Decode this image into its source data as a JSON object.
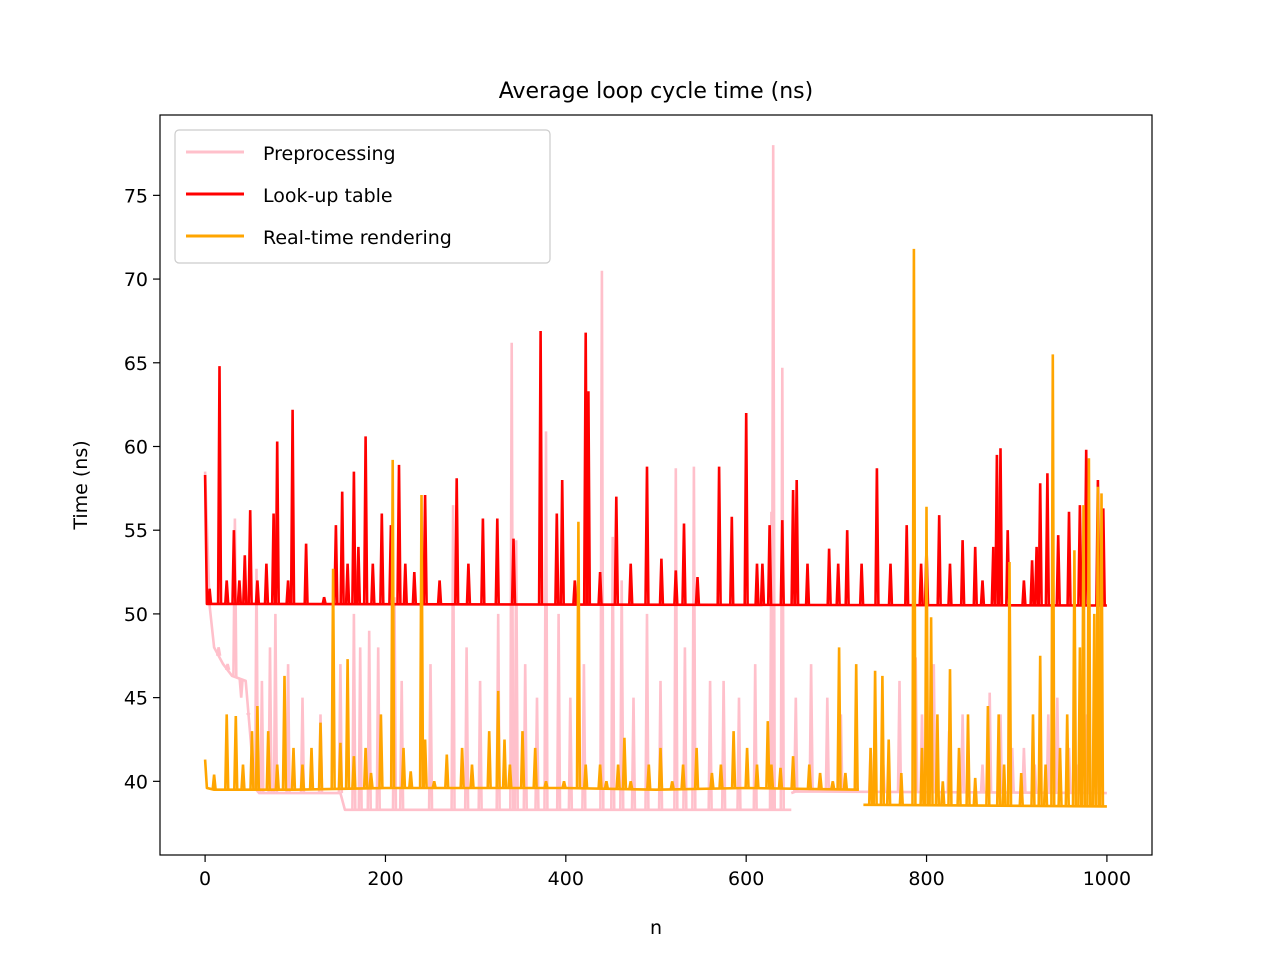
{
  "chart_data": {
    "type": "line",
    "title": "Average loop cycle time (ns)",
    "xlabel": "n",
    "ylabel": "Time (ns)",
    "xlim": [
      -50,
      1050
    ],
    "ylim": [
      35.6,
      79.8
    ],
    "xticks": [
      0,
      200,
      400,
      600,
      800,
      1000
    ],
    "yticks": [
      40,
      45,
      50,
      55,
      60,
      65,
      70,
      75
    ],
    "grid": false,
    "legend_position": "top-left",
    "legend": [
      "Preprocessing",
      "Look-up table",
      "Real-time rendering"
    ],
    "series": [
      {
        "name": "Preprocessing",
        "color": "#ffc0cb",
        "baseline_segments": [
          {
            "x": [
              0,
              5,
              10,
              20,
              30,
              45,
              55,
              60,
              100,
              150
            ],
            "y": [
              58.5,
              50.5,
              48.0,
              47.0,
              46.3,
              46.0,
              39.6,
              39.3,
              39.3,
              39.3
            ]
          },
          {
            "x": [
              150,
              155,
              650
            ],
            "y": [
              39.3,
              38.3,
              38.3
            ]
          },
          {
            "x": [
              650,
              655,
              1000
            ],
            "y": [
              39.3,
              39.4,
              39.3
            ]
          }
        ],
        "spikes": [
          [
            15,
            48
          ],
          [
            25,
            47
          ],
          [
            33,
            55.7
          ],
          [
            40,
            45
          ],
          [
            48,
            44
          ],
          [
            57,
            52.7
          ],
          [
            63,
            46
          ],
          [
            72,
            48
          ],
          [
            78,
            50
          ],
          [
            92,
            47
          ],
          [
            108,
            45
          ],
          [
            128,
            44
          ],
          [
            150,
            47
          ],
          [
            165,
            50
          ],
          [
            172,
            48
          ],
          [
            182,
            49
          ],
          [
            192,
            48
          ],
          [
            210,
            51
          ],
          [
            218,
            46
          ],
          [
            250,
            47
          ],
          [
            275,
            56.5
          ],
          [
            290,
            48
          ],
          [
            305,
            46
          ],
          [
            325,
            50
          ],
          [
            340,
            66.2
          ],
          [
            345,
            54.4
          ],
          [
            355,
            47
          ],
          [
            368,
            45
          ],
          [
            378,
            60.9
          ],
          [
            392,
            50
          ],
          [
            405,
            45
          ],
          [
            420,
            47
          ],
          [
            440,
            70.5
          ],
          [
            452,
            54.6
          ],
          [
            462,
            52
          ],
          [
            475,
            45
          ],
          [
            490,
            50
          ],
          [
            505,
            46
          ],
          [
            522,
            58.7
          ],
          [
            532,
            48
          ],
          [
            542,
            58.8
          ],
          [
            560,
            46
          ],
          [
            575,
            46
          ],
          [
            592,
            45
          ],
          [
            610,
            47
          ],
          [
            628,
            56.1
          ],
          [
            630,
            78
          ],
          [
            640,
            64.7
          ],
          [
            655,
            45
          ],
          [
            672,
            47
          ],
          [
            690,
            45
          ],
          [
            705,
            44
          ],
          [
            722,
            43
          ],
          [
            738,
            42
          ],
          [
            752,
            41
          ],
          [
            770,
            46
          ],
          [
            788,
            47.4
          ],
          [
            795,
            44
          ],
          [
            808,
            47
          ],
          [
            825,
            43
          ],
          [
            840,
            44
          ],
          [
            862,
            41
          ],
          [
            870,
            45.3
          ],
          [
            882,
            44
          ],
          [
            895,
            42
          ],
          [
            908,
            42
          ],
          [
            920,
            41
          ],
          [
            935,
            44
          ],
          [
            945,
            45
          ],
          [
            958,
            42
          ],
          [
            968,
            41
          ],
          [
            978,
            44
          ],
          [
            990,
            45
          ]
        ]
      },
      {
        "name": "Look-up table",
        "color": "#ff0000",
        "baseline_segments": [
          {
            "x": [
              0,
              2,
              1000
            ],
            "y": [
              58.3,
              50.6,
              50.5
            ]
          }
        ],
        "spikes": [
          [
            5,
            51.5
          ],
          [
            16,
            64.8
          ],
          [
            24,
            52
          ],
          [
            32,
            55
          ],
          [
            38,
            52
          ],
          [
            44,
            53.5
          ],
          [
            50,
            56.2
          ],
          [
            58,
            52
          ],
          [
            68,
            53
          ],
          [
            76,
            56
          ],
          [
            80,
            60.3
          ],
          [
            92,
            52
          ],
          [
            97,
            62.2
          ],
          [
            112,
            54.2
          ],
          [
            132,
            51
          ],
          [
            145,
            55.3
          ],
          [
            152,
            57.3
          ],
          [
            158,
            53
          ],
          [
            165,
            58.5
          ],
          [
            170,
            54
          ],
          [
            178,
            60.6
          ],
          [
            186,
            53
          ],
          [
            196,
            56
          ],
          [
            206,
            55.3
          ],
          [
            215,
            58.9
          ],
          [
            222,
            53
          ],
          [
            232,
            52.5
          ],
          [
            244,
            57.1
          ],
          [
            260,
            52
          ],
          [
            279,
            58.1
          ],
          [
            292,
            53
          ],
          [
            308,
            55.7
          ],
          [
            324,
            55.7
          ],
          [
            342,
            54.5
          ],
          [
            372,
            66.9
          ],
          [
            390,
            56
          ],
          [
            396,
            58
          ],
          [
            410,
            52
          ],
          [
            422,
            66.8
          ],
          [
            425,
            63.3
          ],
          [
            438,
            52.5
          ],
          [
            456,
            57
          ],
          [
            472,
            53
          ],
          [
            490,
            58.8
          ],
          [
            506,
            53.3
          ],
          [
            522,
            52.6
          ],
          [
            531,
            55.4
          ],
          [
            546,
            52.2
          ],
          [
            570,
            58.8
          ],
          [
            584,
            55.8
          ],
          [
            600,
            62
          ],
          [
            612,
            53
          ],
          [
            618,
            53
          ],
          [
            626,
            55.3
          ],
          [
            640,
            55.6
          ],
          [
            652,
            57.4
          ],
          [
            656,
            58
          ],
          [
            668,
            53
          ],
          [
            692,
            53.9
          ],
          [
            702,
            53
          ],
          [
            712,
            55
          ],
          [
            728,
            53
          ],
          [
            745,
            58.7
          ],
          [
            760,
            53
          ],
          [
            778,
            55.3
          ],
          [
            794,
            53
          ],
          [
            800,
            54
          ],
          [
            814,
            55.9
          ],
          [
            826,
            53
          ],
          [
            840,
            54.4
          ],
          [
            854,
            54
          ],
          [
            862,
            52
          ],
          [
            874,
            54
          ],
          [
            878,
            59.5
          ],
          [
            882,
            59.9
          ],
          [
            890,
            55
          ],
          [
            908,
            52
          ],
          [
            917,
            53.2
          ],
          [
            922,
            54
          ],
          [
            926,
            57.8
          ],
          [
            934,
            58.4
          ],
          [
            946,
            54.7
          ],
          [
            958,
            56.1
          ],
          [
            970,
            56.5
          ],
          [
            977,
            59.8
          ],
          [
            990,
            58
          ],
          [
            996,
            56.3
          ]
        ]
      },
      {
        "name": "Real-time rendering",
        "color": "#ffa500",
        "baseline_segments": [
          {
            "x": [
              0,
              2,
              10,
              100,
              200,
              300,
              400,
              500,
              600,
              725
            ],
            "y": [
              41.3,
              39.6,
              39.5,
              39.5,
              39.6,
              39.6,
              39.6,
              39.5,
              39.6,
              39.5
            ]
          },
          {
            "x": [
              730,
              1000
            ],
            "y": [
              38.6,
              38.5
            ]
          }
        ],
        "spikes": [
          [
            10,
            40.4
          ],
          [
            24,
            44
          ],
          [
            34,
            43.9
          ],
          [
            42,
            41
          ],
          [
            52,
            43
          ],
          [
            58,
            44.5
          ],
          [
            70,
            43
          ],
          [
            80,
            41
          ],
          [
            88,
            46.3
          ],
          [
            98,
            42
          ],
          [
            108,
            41
          ],
          [
            118,
            42
          ],
          [
            128,
            43.5
          ],
          [
            142,
            52.7
          ],
          [
            150,
            42.3
          ],
          [
            158,
            47.3
          ],
          [
            165,
            41.5
          ],
          [
            178,
            42
          ],
          [
            184,
            40.5
          ],
          [
            195,
            44
          ],
          [
            208,
            59.2
          ],
          [
            220,
            42
          ],
          [
            228,
            40.6
          ],
          [
            240,
            57.1
          ],
          [
            244,
            42.5
          ],
          [
            254,
            40
          ],
          [
            268,
            41.6
          ],
          [
            285,
            42
          ],
          [
            296,
            41
          ],
          [
            315,
            43
          ],
          [
            325,
            45.4
          ],
          [
            332,
            42.5
          ],
          [
            338,
            41
          ],
          [
            352,
            43
          ],
          [
            366,
            42
          ],
          [
            378,
            40
          ],
          [
            398,
            40
          ],
          [
            414,
            55.5
          ],
          [
            422,
            41
          ],
          [
            438,
            41
          ],
          [
            445,
            40
          ],
          [
            458,
            41
          ],
          [
            465,
            42.6
          ],
          [
            472,
            40
          ],
          [
            492,
            41
          ],
          [
            505,
            42
          ],
          [
            518,
            40
          ],
          [
            530,
            41
          ],
          [
            545,
            42
          ],
          [
            562,
            40.5
          ],
          [
            572,
            41
          ],
          [
            586,
            43
          ],
          [
            601,
            42
          ],
          [
            612,
            41
          ],
          [
            624,
            43.6
          ],
          [
            628,
            41
          ],
          [
            638,
            40.8
          ],
          [
            652,
            41.5
          ],
          [
            670,
            41
          ],
          [
            682,
            40.5
          ],
          [
            696,
            40
          ],
          [
            703,
            48
          ],
          [
            710,
            40.5
          ],
          [
            722,
            47
          ],
          [
            738,
            42
          ],
          [
            743,
            46.6
          ],
          [
            751,
            46.3
          ],
          [
            758,
            42.5
          ],
          [
            772,
            40.5
          ],
          [
            786,
            71.8
          ],
          [
            795,
            42
          ],
          [
            800,
            56.4
          ],
          [
            805,
            49.8
          ],
          [
            812,
            44
          ],
          [
            818,
            40
          ],
          [
            826,
            46.7
          ],
          [
            836,
            42
          ],
          [
            846,
            44
          ],
          [
            854,
            40.2
          ],
          [
            868,
            44.5
          ],
          [
            880,
            44
          ],
          [
            886,
            41
          ],
          [
            892,
            53.1
          ],
          [
            905,
            40.5
          ],
          [
            918,
            44
          ],
          [
            926,
            47.5
          ],
          [
            932,
            41
          ],
          [
            940,
            65.5
          ],
          [
            948,
            42
          ],
          [
            956,
            44
          ],
          [
            964,
            53.8
          ],
          [
            970,
            48
          ],
          [
            974,
            56.5
          ],
          [
            980,
            59.3
          ],
          [
            986,
            50
          ],
          [
            990,
            57.6
          ],
          [
            994,
            57.2
          ]
        ]
      }
    ]
  }
}
